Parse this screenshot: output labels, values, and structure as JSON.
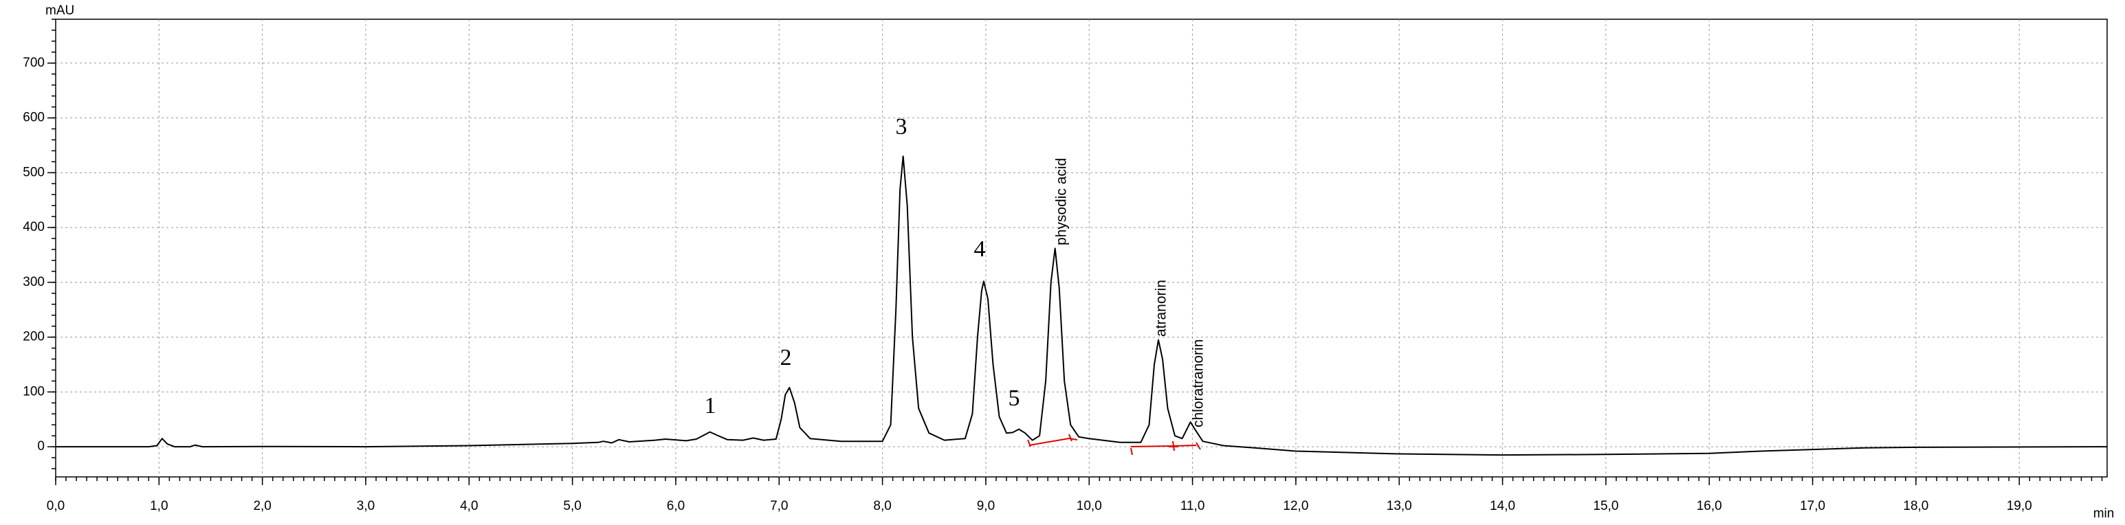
{
  "chart_data": {
    "type": "line",
    "y_label": "mAU",
    "x_label": "min",
    "color": "#000000",
    "grid": true,
    "xlim": [
      0,
      19.85
    ],
    "ylim": [
      -55,
      780
    ],
    "xticks": [
      {
        "value": 0,
        "label": "0,0"
      },
      {
        "value": 1,
        "label": "1,0"
      },
      {
        "value": 2,
        "label": "2,0"
      },
      {
        "value": 3,
        "label": "3,0"
      },
      {
        "value": 4,
        "label": "4,0"
      },
      {
        "value": 5,
        "label": "5,0"
      },
      {
        "value": 6,
        "label": "6,0"
      },
      {
        "value": 7,
        "label": "7,0"
      },
      {
        "value": 8,
        "label": "8,0"
      },
      {
        "value": 9,
        "label": "9,0"
      },
      {
        "value": 10,
        "label": "10,0"
      },
      {
        "value": 11,
        "label": "11,0"
      },
      {
        "value": 12,
        "label": "12,0"
      },
      {
        "value": 13,
        "label": "13,0"
      },
      {
        "value": 14,
        "label": "14,0"
      },
      {
        "value": 15,
        "label": "15,0"
      },
      {
        "value": 16,
        "label": "16,0"
      },
      {
        "value": 17,
        "label": "17,0"
      },
      {
        "value": 18,
        "label": "18,0"
      },
      {
        "value": 19,
        "label": "19,0"
      }
    ],
    "yticks": [
      0,
      100,
      200,
      300,
      400,
      500,
      600,
      700
    ],
    "annotations": [
      "1",
      "2",
      "3",
      "4",
      "5",
      "physodic acid",
      "atranorin",
      "chloratranorin"
    ],
    "x": [
      0.0,
      0.9,
      0.98,
      1.03,
      1.08,
      1.15,
      1.3,
      1.35,
      1.42,
      2.0,
      3.0,
      4.0,
      5.0,
      5.25,
      5.3,
      5.38,
      5.45,
      5.55,
      5.8,
      5.9,
      6.1,
      6.2,
      6.28,
      6.33,
      6.4,
      6.5,
      6.65,
      6.75,
      6.85,
      6.97,
      7.02,
      7.06,
      7.1,
      7.15,
      7.2,
      7.3,
      7.6,
      8.0,
      8.08,
      8.13,
      8.17,
      8.2,
      8.24,
      8.29,
      8.35,
      8.45,
      8.6,
      8.8,
      8.87,
      8.92,
      8.96,
      8.98,
      9.02,
      9.07,
      9.13,
      9.2,
      9.26,
      9.32,
      9.38,
      9.45,
      9.52,
      9.58,
      9.63,
      9.67,
      9.71,
      9.76,
      9.82,
      9.9,
      10.0,
      10.3,
      10.5,
      10.58,
      10.63,
      10.67,
      10.71,
      10.76,
      10.83,
      10.9,
      10.94,
      10.98,
      11.03,
      11.1,
      11.3,
      11.6,
      12.0,
      13.0,
      14.0,
      15.0,
      16.0,
      16.5,
      17.0,
      17.5,
      18.0,
      19.85
    ],
    "values": [
      0,
      0,
      2,
      15,
      5,
      0,
      0,
      3,
      0,
      0.5,
      0,
      2,
      6,
      8,
      10,
      7,
      13,
      9,
      12,
      14,
      11,
      14,
      22,
      27,
      21,
      13,
      12,
      16,
      12,
      14,
      50,
      95,
      108,
      80,
      35,
      15,
      10,
      10,
      40,
      250,
      470,
      530,
      440,
      200,
      70,
      25,
      12,
      15,
      60,
      200,
      285,
      302,
      270,
      150,
      55,
      25,
      26,
      32,
      25,
      12,
      20,
      120,
      300,
      362,
      290,
      120,
      40,
      18,
      15,
      8,
      8,
      40,
      150,
      195,
      160,
      70,
      20,
      15,
      30,
      45,
      30,
      10,
      2,
      -2,
      -8,
      -13,
      -15,
      -14,
      -12,
      -8,
      -5,
      -2,
      -1,
      0
    ]
  }
}
